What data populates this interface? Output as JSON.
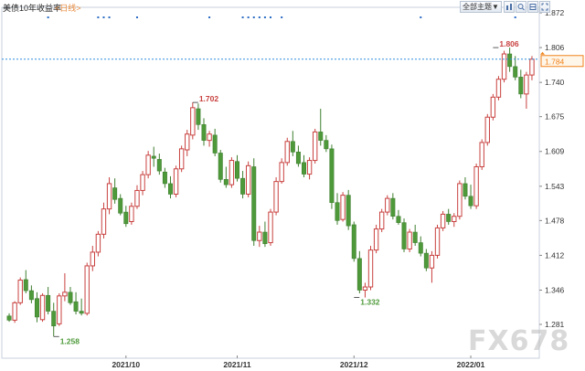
{
  "header": {
    "title": "美债10年收益率",
    "period_label": "<日线>",
    "menu_label": "全部主题▼",
    "icons": [
      "chart-type-icon",
      "zoom-icon",
      "settings-icon",
      "fullscreen-icon"
    ]
  },
  "watermark": "FX678",
  "colors": {
    "up": "#c8413f",
    "down": "#4e9a3a",
    "price_line": "#2f8ee0",
    "price_tag": "#f0831b",
    "axis": "#888888"
  },
  "chart_data": {
    "type": "candlestick",
    "title": "美债10年收益率",
    "xlabel": "",
    "ylabel": "",
    "ylim": [
      1.25,
      1.89
    ],
    "y_ticks": [
      "1.872",
      "1.806",
      "1.740",
      "1.675",
      "1.609",
      "1.543",
      "1.478",
      "1.412",
      "1.346",
      "1.281"
    ],
    "x_ticks": [
      "2021/10",
      "2021/11",
      "2021/12",
      "2022/01"
    ],
    "x_tick_index": [
      21,
      41,
      62,
      83
    ],
    "current_price": 1.784,
    "annotations": [
      {
        "label": "1.258",
        "index": 8,
        "value": 1.258,
        "kind": "low"
      },
      {
        "label": "1.702",
        "index": 33,
        "value": 1.702,
        "kind": "high"
      },
      {
        "label": "1.332",
        "index": 62,
        "value": 1.332,
        "kind": "low"
      },
      {
        "label": "1.806",
        "index": 87,
        "value": 1.806,
        "kind": "high"
      }
    ],
    "event_markers": [
      7,
      16,
      17,
      18,
      23,
      36,
      42,
      43,
      44,
      45,
      46,
      47,
      49,
      74,
      91
    ],
    "candles": [
      [
        1.297,
        1.302,
        1.286,
        1.289
      ],
      [
        1.289,
        1.325,
        1.284,
        1.322
      ],
      [
        1.322,
        1.37,
        1.318,
        1.365
      ],
      [
        1.366,
        1.384,
        1.34,
        1.345
      ],
      [
        1.345,
        1.355,
        1.321,
        1.328
      ],
      [
        1.33,
        1.342,
        1.285,
        1.295
      ],
      [
        1.29,
        1.34,
        1.286,
        1.336
      ],
      [
        1.336,
        1.352,
        1.3,
        1.306
      ],
      [
        1.306,
        1.322,
        1.258,
        1.278
      ],
      [
        1.282,
        1.34,
        1.278,
        1.335
      ],
      [
        1.335,
        1.378,
        1.325,
        1.342
      ],
      [
        1.342,
        1.352,
        1.318,
        1.322
      ],
      [
        1.324,
        1.342,
        1.3,
        1.306
      ],
      [
        1.306,
        1.33,
        1.298,
        1.302
      ],
      [
        1.302,
        1.398,
        1.298,
        1.392
      ],
      [
        1.392,
        1.43,
        1.382,
        1.418
      ],
      [
        1.418,
        1.458,
        1.41,
        1.452
      ],
      [
        1.452,
        1.512,
        1.444,
        1.5
      ],
      [
        1.5,
        1.56,
        1.49,
        1.548
      ],
      [
        1.54,
        1.558,
        1.51,
        1.518
      ],
      [
        1.52,
        1.528,
        1.488,
        1.492
      ],
      [
        1.494,
        1.506,
        1.466,
        1.472
      ],
      [
        1.476,
        1.512,
        1.47,
        1.505
      ],
      [
        1.505,
        1.545,
        1.5,
        1.535
      ],
      [
        1.535,
        1.572,
        1.526,
        1.565
      ],
      [
        1.565,
        1.61,
        1.558,
        1.602
      ],
      [
        1.6,
        1.618,
        1.58,
        1.596
      ],
      [
        1.594,
        1.605,
        1.565,
        1.572
      ],
      [
        1.57,
        1.578,
        1.54,
        1.548
      ],
      [
        1.548,
        1.562,
        1.52,
        1.528
      ],
      [
        1.528,
        1.582,
        1.522,
        1.576
      ],
      [
        1.576,
        1.62,
        1.57,
        1.614
      ],
      [
        1.612,
        1.65,
        1.6,
        1.642
      ],
      [
        1.64,
        1.702,
        1.632,
        1.692
      ],
      [
        1.69,
        1.7,
        1.65,
        1.66
      ],
      [
        1.66,
        1.672,
        1.62,
        1.63
      ],
      [
        1.63,
        1.648,
        1.618,
        1.642
      ],
      [
        1.64,
        1.652,
        1.6,
        1.606
      ],
      [
        1.606,
        1.612,
        1.55,
        1.556
      ],
      [
        1.556,
        1.58,
        1.54,
        1.546
      ],
      [
        1.546,
        1.598,
        1.54,
        1.592
      ],
      [
        1.59,
        1.602,
        1.552,
        1.558
      ],
      [
        1.558,
        1.572,
        1.52,
        1.528
      ],
      [
        1.528,
        1.59,
        1.522,
        1.582
      ],
      [
        1.58,
        1.596,
        1.43,
        1.44
      ],
      [
        1.44,
        1.468,
        1.428,
        1.456
      ],
      [
        1.456,
        1.476,
        1.428,
        1.434
      ],
      [
        1.436,
        1.5,
        1.43,
        1.494
      ],
      [
        1.494,
        1.56,
        1.488,
        1.552
      ],
      [
        1.552,
        1.596,
        1.548,
        1.588
      ],
      [
        1.588,
        1.635,
        1.582,
        1.628
      ],
      [
        1.628,
        1.648,
        1.6,
        1.608
      ],
      [
        1.608,
        1.62,
        1.58,
        1.586
      ],
      [
        1.588,
        1.602,
        1.56,
        1.566
      ],
      [
        1.566,
        1.598,
        1.556,
        1.592
      ],
      [
        1.592,
        1.652,
        1.586,
        1.646
      ],
      [
        1.646,
        1.69,
        1.62,
        1.63
      ],
      [
        1.63,
        1.64,
        1.608,
        1.614
      ],
      [
        1.614,
        1.622,
        1.5,
        1.512
      ],
      [
        1.512,
        1.53,
        1.47,
        1.478
      ],
      [
        1.48,
        1.532,
        1.476,
        1.526
      ],
      [
        1.526,
        1.536,
        1.46,
        1.468
      ],
      [
        1.47,
        1.476,
        1.4,
        1.406
      ],
      [
        1.406,
        1.42,
        1.34,
        1.346
      ],
      [
        1.346,
        1.36,
        1.332,
        1.352
      ],
      [
        1.352,
        1.43,
        1.346,
        1.422
      ],
      [
        1.422,
        1.47,
        1.416,
        1.462
      ],
      [
        1.462,
        1.5,
        1.456,
        1.494
      ],
      [
        1.494,
        1.526,
        1.488,
        1.52
      ],
      [
        1.52,
        1.53,
        1.48,
        1.486
      ],
      [
        1.486,
        1.498,
        1.47,
        1.474
      ],
      [
        1.474,
        1.482,
        1.418,
        1.424
      ],
      [
        1.424,
        1.462,
        1.418,
        1.456
      ],
      [
        1.456,
        1.47,
        1.43,
        1.436
      ],
      [
        1.436,
        1.448,
        1.41,
        1.416
      ],
      [
        1.416,
        1.424,
        1.382,
        1.388
      ],
      [
        1.388,
        1.42,
        1.36,
        1.412
      ],
      [
        1.412,
        1.47,
        1.406,
        1.464
      ],
      [
        1.464,
        1.496,
        1.458,
        1.49
      ],
      [
        1.49,
        1.5,
        1.47,
        1.476
      ],
      [
        1.476,
        1.492,
        1.466,
        1.486
      ],
      [
        1.486,
        1.554,
        1.48,
        1.548
      ],
      [
        1.548,
        1.56,
        1.518,
        1.524
      ],
      [
        1.524,
        1.546,
        1.5,
        1.506
      ],
      [
        1.506,
        1.586,
        1.5,
        1.58
      ],
      [
        1.58,
        1.632,
        1.574,
        1.626
      ],
      [
        1.626,
        1.68,
        1.62,
        1.674
      ],
      [
        1.674,
        1.718,
        1.668,
        1.712
      ],
      [
        1.712,
        1.752,
        1.706,
        1.746
      ],
      [
        1.746,
        1.8,
        1.74,
        1.794
      ],
      [
        1.794,
        1.806,
        1.76,
        1.77
      ],
      [
        1.77,
        1.79,
        1.744,
        1.75
      ],
      [
        1.75,
        1.764,
        1.71,
        1.718
      ],
      [
        1.718,
        1.76,
        1.69,
        1.754
      ],
      [
        1.754,
        1.79,
        1.744,
        1.784
      ]
    ]
  }
}
